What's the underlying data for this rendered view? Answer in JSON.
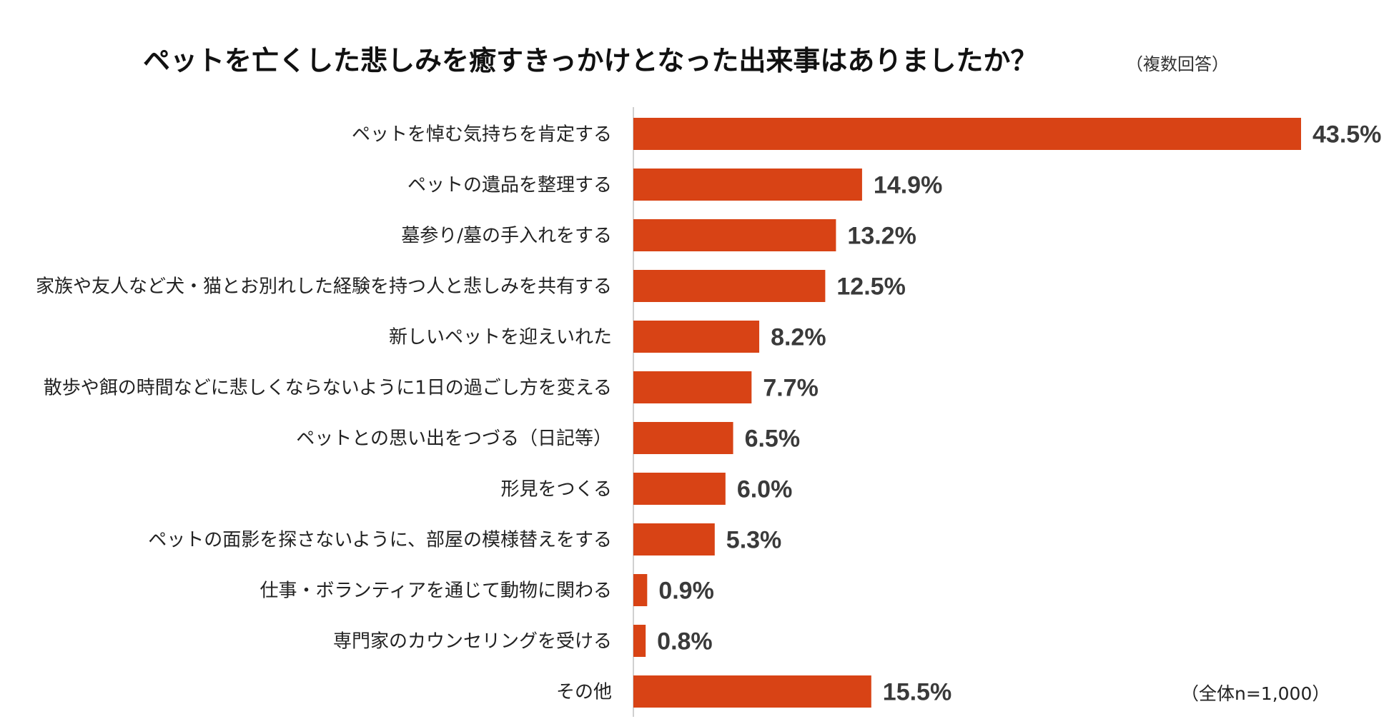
{
  "chart_data": {
    "type": "bar",
    "orientation": "horizontal",
    "title": "ペットを亡くした悲しみを癒すきっかけとなった出来事はありましたか？",
    "subtitle": "（複数回答）",
    "note": "（全体n=1,000）",
    "unit": "%",
    "xlim": [
      0,
      43.5
    ],
    "grid": false,
    "legend": "none",
    "bar_color": "#D84315",
    "categories": [
      "ペットを悼む気持ちを肯定する",
      "ペットの遺品を整理する",
      "墓参り/墓の手入れをする",
      "家族や友人など犬・猫とお別れした経験を持つ人と悲しみを共有する",
      "新しいペットを迎えいれた",
      "散歩や餌の時間などに悲しくならないように1日の過ごし方を変える",
      "ペットとの思い出をつづる（日記等）",
      "形見をつくる",
      "ペットの面影を探さないように、部屋の模様替えをする",
      "仕事・ボランティアを通じて動物に関わる",
      "専門家のカウンセリングを受ける",
      "その他"
    ],
    "values": [
      43.5,
      14.9,
      13.2,
      12.5,
      8.2,
      7.7,
      6.5,
      6.0,
      5.3,
      0.9,
      0.8,
      15.5
    ],
    "value_labels": [
      "43.5%",
      "14.9%",
      "13.2%",
      "12.5%",
      "8.2%",
      "7.7%",
      "6.5%",
      "6.0%",
      "5.3%",
      "0.9%",
      "0.8%",
      "15.5%"
    ]
  }
}
